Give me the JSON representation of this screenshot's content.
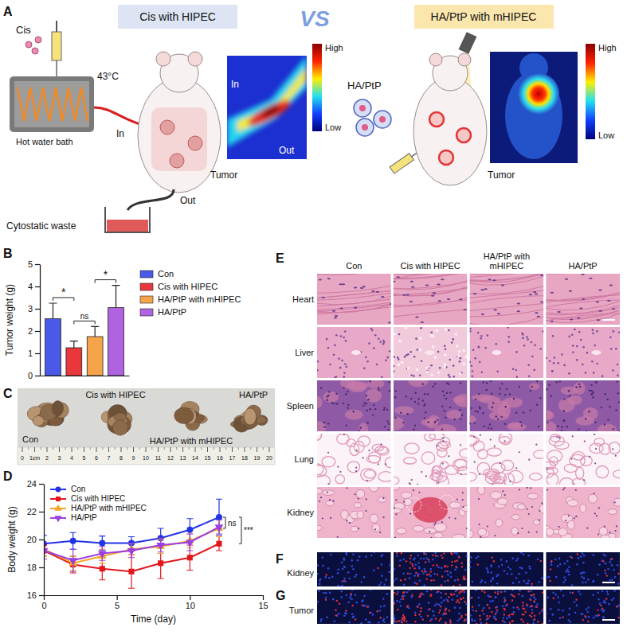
{
  "panel_labels": [
    "A",
    "B",
    "C",
    "D",
    "E",
    "F",
    "G"
  ],
  "schematic": {
    "left_title": "Cis with HIPEC",
    "vs": "VS",
    "right_title": "HA/PtP with mHIPEC",
    "drug_left": "Cis",
    "temperature": "43°C",
    "bath": "Hot water bath",
    "inlet": "In",
    "tumor": "Tumor",
    "outlet": "Out",
    "waste": "Cytostatic waste",
    "map_in": "In",
    "map_out": "Out",
    "high": "High",
    "low": "Low",
    "drug_right": "HA/PtP"
  },
  "chart_data": [
    {
      "type": "bar",
      "categories": [
        "Con",
        "Cis with HIPEC",
        "HA/PtP with mHIPEC",
        "HA/PtP"
      ],
      "values": [
        2.55,
        1.25,
        1.75,
        3.05
      ],
      "errors": [
        0.7,
        0.3,
        0.45,
        1.0
      ],
      "colors": [
        "#4a5ae8",
        "#e8383c",
        "#f5a44a",
        "#b063e0"
      ],
      "y_label": "Tumor weight (g)",
      "ylim": [
        0,
        5
      ],
      "yticks": [
        0,
        1,
        2,
        3,
        4,
        5
      ],
      "legend": "right",
      "tick_labels": "y",
      "significance": [
        {
          "pair": [
            0,
            1
          ],
          "label": "*"
        },
        {
          "pair": [
            1,
            2
          ],
          "label": "ns"
        },
        {
          "pair": [
            2,
            3
          ],
          "label": "*"
        }
      ]
    },
    {
      "type": "line",
      "x": [
        0,
        2,
        4,
        6,
        8,
        10,
        12
      ],
      "x_label": "Time (day)",
      "y_label": "Body weight (g)",
      "xlim": [
        0,
        15
      ],
      "xticks": [
        0,
        5,
        10,
        15
      ],
      "ylim": [
        16,
        24
      ],
      "yticks": [
        16,
        18,
        20,
        22,
        24
      ],
      "legend": "upper left",
      "series": [
        {
          "name": "Con",
          "color": "#2233e6",
          "marker": "circle",
          "values": [
            19.7,
            19.9,
            19.75,
            19.75,
            20.1,
            20.7,
            21.6
          ],
          "errors": [
            0.6,
            0.6,
            0.5,
            0.45,
            0.7,
            0.8,
            1.3
          ]
        },
        {
          "name": "Cis with HIPEC",
          "color": "#e3161b",
          "marker": "square",
          "values": [
            19.2,
            18.2,
            17.9,
            17.7,
            18.3,
            18.7,
            19.7
          ],
          "errors": [
            0.4,
            0.6,
            0.8,
            1.2,
            1.1,
            0.9,
            0.5
          ]
        },
        {
          "name": "HA/PtP  with mHIPEC",
          "color": "#f5a623",
          "marker": "triangle",
          "values": [
            19.3,
            18.3,
            18.8,
            19.3,
            19.5,
            19.9,
            20.8
          ],
          "errors": [
            0.5,
            0.5,
            0.5,
            0.4,
            0.5,
            0.5,
            0.6
          ]
        },
        {
          "name": "HA/PtP",
          "color": "#9b3fe0",
          "marker": "triangle-down",
          "values": [
            19.2,
            18.5,
            19.0,
            19.2,
            19.6,
            19.8,
            20.9
          ],
          "errors": [
            0.6,
            0.8,
            0.5,
            0.5,
            0.5,
            0.6,
            0.5
          ]
        }
      ],
      "significance": [
        {
          "pair": [
            0,
            2
          ],
          "label": "ns"
        },
        {
          "pair": [
            0,
            1
          ],
          "label": "***"
        }
      ]
    }
  ],
  "photo": {
    "sample_labels": [
      "Con",
      "Cis with HIPEC",
      "HA/PtP with mHIPEC",
      "HA/PtP"
    ],
    "ruler_labels": [
      "0",
      "1cm",
      "2",
      "3",
      "4",
      "5",
      "6",
      "7",
      "8",
      "9",
      "10",
      "11",
      "12",
      "13",
      "14",
      "15",
      "16",
      "17",
      "18",
      "19",
      "20"
    ]
  },
  "histology": {
    "columns": [
      "Con",
      "Cis with HIPEC",
      "HA/PtP with mHIPEC",
      "HA/PtP"
    ],
    "rows": [
      "Heart",
      "Liver",
      "Spleen",
      "Lung",
      "Kidney"
    ]
  },
  "fluorescence": {
    "rows": [
      "Kidney",
      "Tumor"
    ]
  }
}
